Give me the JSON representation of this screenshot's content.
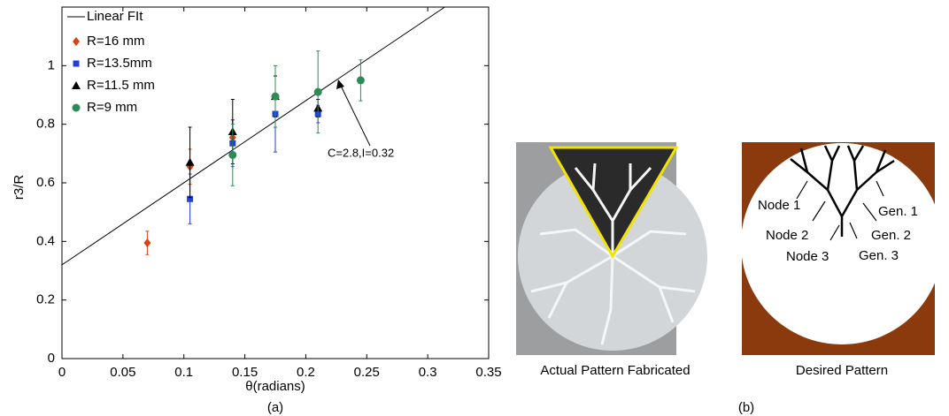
{
  "chart_data": {
    "type": "scatter",
    "xlabel": "θ(radians)",
    "ylabel": "r3/R",
    "xlim": [
      0,
      0.35
    ],
    "ylim": [
      0,
      1.2
    ],
    "xticks": [
      0,
      0.05,
      0.1,
      0.15,
      0.2,
      0.25,
      0.3,
      0.35
    ],
    "yticks": [
      0,
      0.2,
      0.4,
      0.6,
      0.8,
      1
    ],
    "fit": {
      "name": "Linear FIt",
      "color": "#000000",
      "x": [
        0,
        0.314
      ],
      "values": [
        0.32,
        1.2
      ]
    },
    "series": [
      {
        "name": "R=16 mm",
        "color": "#d9410f",
        "marker": "diamond",
        "x": [
          0.07,
          0.105,
          0.14
        ],
        "values": [
          0.395,
          0.655,
          0.755
        ],
        "errors": [
          0.04,
          0.06,
          0.06
        ]
      },
      {
        "name": "R=13.5mm",
        "color": "#1f3fe0",
        "marker": "square",
        "x": [
          0.105,
          0.14,
          0.175,
          0.21
        ],
        "values": [
          0.545,
          0.735,
          0.835,
          0.835
        ],
        "errors": [
          0.085,
          0.08,
          0.13,
          0.03
        ]
      },
      {
        "name": "R=11.5 mm",
        "color": "#000000",
        "marker": "triangle",
        "x": [
          0.105,
          0.14,
          0.175,
          0.21
        ],
        "values": [
          0.67,
          0.775,
          0.895,
          0.855
        ],
        "errors": [
          0.12,
          0.11,
          0.07,
          0.03
        ]
      },
      {
        "name": "R=9 mm",
        "color": "#2e8b57",
        "marker": "circle",
        "x": [
          0.14,
          0.175,
          0.21,
          0.245
        ],
        "values": [
          0.695,
          0.895,
          0.91,
          0.95
        ],
        "errors": [
          0.105,
          0.105,
          0.14,
          0.07
        ]
      }
    ],
    "annotation": "C=2.8,I=0.32",
    "caption": "(a)"
  },
  "panel_b": {
    "left_label": "Actual Pattern Fabricated",
    "right_label": "Desired Pattern",
    "labels": [
      "Node 1",
      "Node 2",
      "Node 3",
      "Gen. 1",
      "Gen. 2",
      "Gen. 3"
    ],
    "caption": "(b)"
  }
}
